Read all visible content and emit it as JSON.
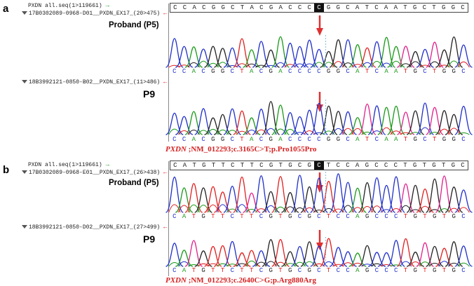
{
  "panels": [
    {
      "letter": "a",
      "reference_track": "PXDN all.seq(1>119661)",
      "reference_seq": [
        "C",
        "C",
        "A",
        "C",
        "G",
        "G",
        "C",
        "T",
        "A",
        "C",
        "G",
        "A",
        "C",
        "C",
        "C",
        "C",
        "G",
        "G",
        "C",
        "A",
        "T",
        "C",
        "A",
        "A",
        "T",
        "G",
        "C",
        "T",
        "G",
        "G",
        "C"
      ],
      "highlight_index": 15,
      "samples": [
        {
          "track": "17B0302089-0968-D01__PXDN_EX17_(20>475)",
          "label": "Proband (P5)",
          "basecalls": [
            "C",
            "C",
            "A",
            "C",
            "G",
            "G",
            "C",
            "T",
            "A",
            "C",
            "G",
            "A",
            "C",
            "C",
            "C",
            "C",
            "G",
            "G",
            "C",
            "A",
            "T",
            "C",
            "A",
            "A",
            "T",
            "G",
            "C",
            "T",
            "G",
            "G",
            "C"
          ]
        },
        {
          "track": "18B3992121-0850-B02__PXDN_EX17_(11>486)",
          "label": "P9",
          "basecalls": [
            "C",
            "C",
            "A",
            "C",
            "G",
            "G",
            "C",
            "T",
            "A",
            "C",
            "G",
            "A",
            "C",
            "C",
            "C",
            "C",
            "G",
            "G",
            "C",
            "A",
            "T",
            "C",
            "A",
            "A",
            "T",
            "G",
            "C",
            "T",
            "G",
            "G",
            "C"
          ]
        }
      ],
      "mutation_gene": "PXDN",
      "mutation_text": " ;NM_012293;c.3165C>T;p.Pro1055Pro"
    },
    {
      "letter": "b",
      "reference_track": "PXDN all.seq(1>119661)",
      "reference_seq": [
        "C",
        "A",
        "T",
        "G",
        "T",
        "T",
        "C",
        "T",
        "T",
        "C",
        "G",
        "T",
        "G",
        "C",
        "G",
        "C",
        "T",
        "C",
        "C",
        "A",
        "G",
        "C",
        "C",
        "C",
        "T",
        "G",
        "T",
        "G",
        "T",
        "G",
        "C"
      ],
      "highlight_index": 15,
      "samples": [
        {
          "track": "17B0302089-0968-E01__PXDN_EX17_(26>438)",
          "label": "Proband (P5)",
          "basecalls": [
            "C",
            "A",
            "T",
            "G",
            "T",
            "T",
            "C",
            "T",
            "T",
            "C",
            "G",
            "T",
            "G",
            "C",
            "G",
            "C",
            "T",
            "C",
            "C",
            "A",
            "G",
            "C",
            "C",
            "C",
            "T",
            "G",
            "T",
            "G",
            "T",
            "G",
            "C"
          ]
        },
        {
          "track": "18B3992121-0850-D02__PXDN_EX17_(27>499)",
          "label": "P9",
          "basecalls": [
            "C",
            "A",
            "T",
            "G",
            "T",
            "T",
            "C",
            "T",
            "T",
            "C",
            "G",
            "T",
            "G",
            "C",
            "G",
            "C",
            "T",
            "C",
            "C",
            "A",
            "G",
            "C",
            "C",
            "C",
            "T",
            "G",
            "T",
            "G",
            "T",
            "G",
            "C"
          ]
        }
      ],
      "mutation_gene": "PXDN",
      "mutation_text": " ;NM_012293;c.2640C>G;p.Arg880Arg"
    }
  ],
  "colors": {
    "A": "#1a9a1a",
    "C": "#2030c8",
    "G": "#222222",
    "T": "#e02020",
    "trace_extra": "#e0208c",
    "arrow": "#e03030",
    "mutation_text": "#d62020"
  }
}
